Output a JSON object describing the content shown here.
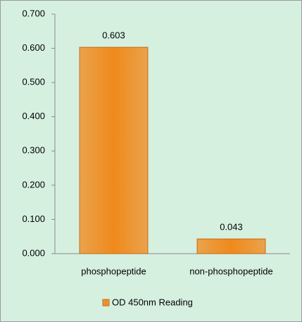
{
  "chart_data": {
    "type": "bar",
    "categories": [
      "phosphopeptide",
      "non-phosphopeptide"
    ],
    "series": [
      {
        "name": "OD 450nm Reading",
        "color": "#f0891c",
        "values": [
          0.603,
          0.043
        ]
      }
    ],
    "ylim": [
      0,
      0.7
    ],
    "yticks": [
      {
        "value": 0,
        "label": "0.000"
      },
      {
        "value": 0.1,
        "label": "0.100"
      },
      {
        "value": 0.2,
        "label": "0.200"
      },
      {
        "value": 0.3,
        "label": "0.300"
      },
      {
        "value": 0.4,
        "label": "0.400"
      },
      {
        "value": 0.5,
        "label": "0.500"
      },
      {
        "value": 0.6,
        "label": "0.600"
      },
      {
        "value": 0.7,
        "label": "0.700"
      }
    ],
    "grid": false,
    "legend": "bottom"
  }
}
